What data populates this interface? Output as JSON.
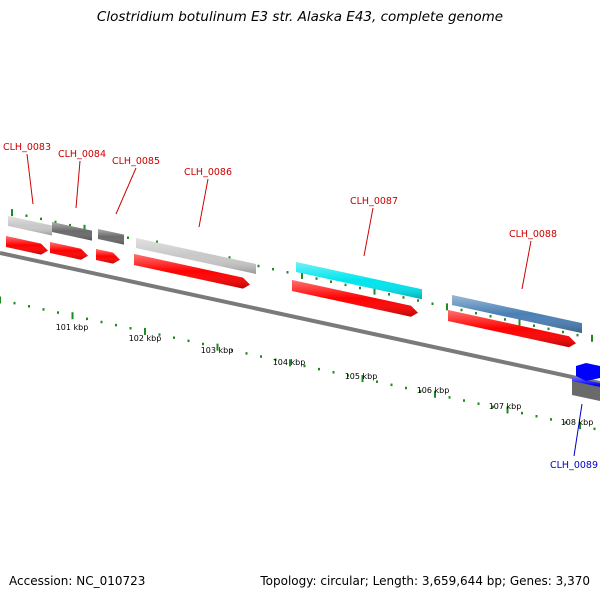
{
  "title": "Clostridium botulinum E3 str. Alaska E43, complete genome",
  "accession": "Accession: NC_010723",
  "summary": "Topology: circular; Length: 3,659,644 bp; Genes: 3,370",
  "colors": {
    "backbone": "#7a7a7a",
    "cds": "#ff0000",
    "tick": "#1f8a1f",
    "label_forward": "#cc0000",
    "label_reverse": "#0000cc"
  },
  "scale": {
    "ticks": [
      "101 kbp",
      "102 kbp",
      "103 kbp",
      "104 kbp",
      "105 kbp",
      "106 kbp",
      "107 kbp",
      "108 kbp"
    ]
  },
  "genes": [
    {
      "name": "CLH_0083",
      "color": "#c8c8c8",
      "strand": "forward"
    },
    {
      "name": "CLH_0084",
      "color": "#6a6a6a",
      "strand": "forward"
    },
    {
      "name": "CLH_0085",
      "color": "#6a6a6a",
      "strand": "forward"
    },
    {
      "name": "CLH_0086",
      "color": "#c8c8c8",
      "strand": "forward"
    },
    {
      "name": "CLH_0087",
      "color": "#00e5ee",
      "strand": "forward"
    },
    {
      "name": "CLH_0088",
      "color": "#4a7fb5",
      "strand": "forward"
    },
    {
      "name": "CLH_0089",
      "color": "#0000ff",
      "strand": "reverse"
    }
  ]
}
